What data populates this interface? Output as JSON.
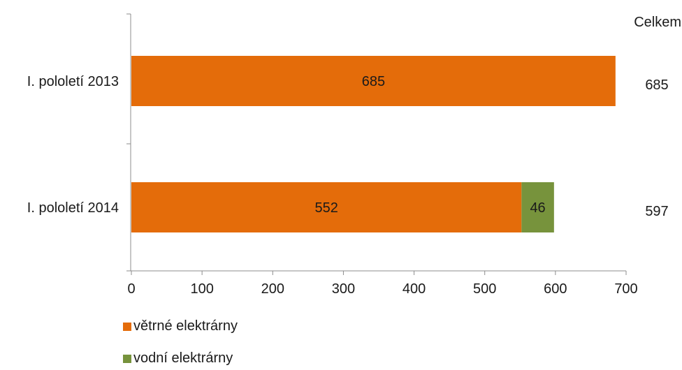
{
  "chart_data": {
    "type": "bar",
    "orientation": "horizontal",
    "stacked": true,
    "categories": [
      "I. pololetí 2013",
      "I. pololetí 2014"
    ],
    "series": [
      {
        "name": "větrné elektrárny",
        "color": "#E46C0A",
        "values": [
          685,
          552
        ]
      },
      {
        "name": "vodní elektrárny",
        "color": "#77933C",
        "values": [
          0,
          46
        ]
      }
    ],
    "data_labels": [
      [
        "685",
        ""
      ],
      [
        "552",
        "46"
      ]
    ],
    "totals_header": "Celkem",
    "totals": [
      "685",
      "597"
    ],
    "xlim": [
      0,
      700
    ],
    "xticks": [
      "0",
      "100",
      "200",
      "300",
      "400",
      "500",
      "600",
      "700"
    ],
    "grid": false,
    "legend_position": "bottom-left"
  }
}
